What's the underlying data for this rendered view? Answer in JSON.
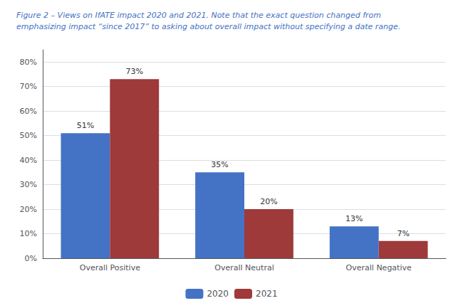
{
  "chart_data": {
    "type": "bar",
    "title": "Figure 2 – Views on IfATE impact 2020 and 2021. Note that the exact question changed from\nemphasizing impact “since 2017” to asking about overall impact without specifying a date range.",
    "title_color": "#4472C4",
    "categories": [
      "Overall Positive",
      "Overall Neutral",
      "Overall Negative"
    ],
    "series": [
      {
        "name": "2020",
        "color": "#4472C4",
        "values": [
          51,
          35,
          13
        ],
        "value_labels": [
          "51%",
          "35%",
          "13%"
        ]
      },
      {
        "name": "2021",
        "color": "#9E3A3A",
        "values": [
          73,
          20,
          7
        ],
        "value_labels": [
          "73%",
          "20%",
          "7%"
        ]
      }
    ],
    "ylim": [
      0,
      85
    ],
    "yticks": [
      {
        "value": 0,
        "label": "0%"
      },
      {
        "value": 10,
        "label": "10%"
      },
      {
        "value": 20,
        "label": "20%"
      },
      {
        "value": 30,
        "label": "30%"
      },
      {
        "value": 40,
        "label": "40%"
      },
      {
        "value": 50,
        "label": "50%"
      },
      {
        "value": 60,
        "label": "60%"
      },
      {
        "value": 70,
        "label": "70%"
      },
      {
        "value": 80,
        "label": "80%"
      }
    ],
    "grid": true,
    "legend": "bottom",
    "data_labels": true
  }
}
